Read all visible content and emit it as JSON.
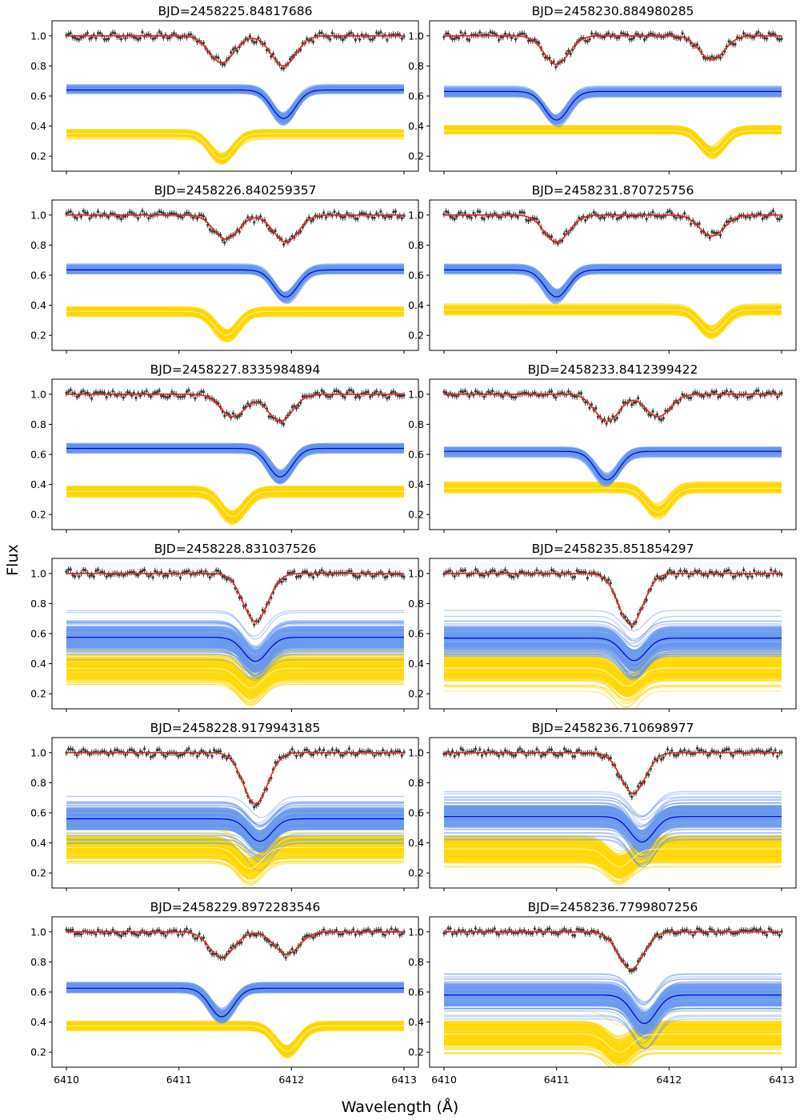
{
  "figure": {
    "ylabel": "Flux",
    "xlabel": "Wavelength (Å)"
  },
  "chart_data": [
    {
      "type": "line",
      "title": "BJD=2458225.84817686",
      "xlim": [
        6410,
        6413
      ],
      "ylim": [
        0.1,
        1.1
      ],
      "xticks": [
        6410,
        6411,
        6412,
        6413
      ],
      "yticks": [
        0.2,
        0.4,
        0.6,
        0.8,
        1.0
      ],
      "composite": {
        "dips": [
          {
            "center": 6411.38,
            "depth": 0.18
          },
          {
            "center": 6411.93,
            "depth": 0.2
          }
        ]
      },
      "primary": {
        "continuum": 0.64,
        "center": 6411.93,
        "depth": 0.19,
        "spread": "narrow"
      },
      "secondary": {
        "continuum": 0.35,
        "center": 6411.38,
        "depth": 0.17,
        "spread": "narrow"
      },
      "series": [
        "observed spectrum",
        "composite model",
        "primary component samples",
        "secondary component samples"
      ]
    },
    {
      "type": "line",
      "title": "BJD=2458230.884980285",
      "xlim": [
        6410,
        6413
      ],
      "ylim": [
        0.1,
        1.1
      ],
      "xticks": [
        6410,
        6411,
        6412,
        6413
      ],
      "yticks": [
        0.2,
        0.4,
        0.6,
        0.8,
        1.0
      ],
      "composite": {
        "dips": [
          {
            "center": 6411.0,
            "depth": 0.19
          },
          {
            "center": 6412.38,
            "depth": 0.16
          }
        ]
      },
      "primary": {
        "continuum": 0.63,
        "center": 6411.0,
        "depth": 0.19,
        "spread": "narrow"
      },
      "secondary": {
        "continuum": 0.37,
        "center": 6412.38,
        "depth": 0.15,
        "spread": "narrow"
      },
      "series": [
        "observed spectrum",
        "composite model",
        "primary component samples",
        "secondary component samples"
      ]
    },
    {
      "type": "line",
      "title": "BJD=2458226.840259357",
      "xlim": [
        6410,
        6413
      ],
      "ylim": [
        0.1,
        1.1
      ],
      "xticks": [
        6410,
        6411,
        6412,
        6413
      ],
      "yticks": [
        0.2,
        0.4,
        0.6,
        0.8,
        1.0
      ],
      "composite": {
        "dips": [
          {
            "center": 6411.42,
            "depth": 0.16
          },
          {
            "center": 6411.95,
            "depth": 0.18
          }
        ]
      },
      "primary": {
        "continuum": 0.635,
        "center": 6411.95,
        "depth": 0.18,
        "spread": "narrow"
      },
      "secondary": {
        "continuum": 0.36,
        "center": 6411.42,
        "depth": 0.16,
        "spread": "narrow"
      },
      "series": [
        "observed spectrum",
        "composite model",
        "primary component samples",
        "secondary component samples"
      ]
    },
    {
      "type": "line",
      "title": "BJD=2458231.870725756",
      "xlim": [
        6410,
        6413
      ],
      "ylim": [
        0.1,
        1.1
      ],
      "xticks": [
        6410,
        6411,
        6412,
        6413
      ],
      "yticks": [
        0.2,
        0.4,
        0.6,
        0.8,
        1.0
      ],
      "composite": {
        "dips": [
          {
            "center": 6411.0,
            "depth": 0.18
          },
          {
            "center": 6412.38,
            "depth": 0.14
          }
        ]
      },
      "primary": {
        "continuum": 0.635,
        "center": 6411.0,
        "depth": 0.18,
        "spread": "narrow"
      },
      "secondary": {
        "continuum": 0.37,
        "center": 6412.38,
        "depth": 0.15,
        "spread": "narrow"
      },
      "series": [
        "observed spectrum",
        "composite model",
        "primary component samples",
        "secondary component samples"
      ]
    },
    {
      "type": "line",
      "title": "BJD=2458227.8335984894",
      "xlim": [
        6410,
        6413
      ],
      "ylim": [
        0.1,
        1.1
      ],
      "xticks": [
        6410,
        6411,
        6412,
        6413
      ],
      "yticks": [
        0.2,
        0.4,
        0.6,
        0.8,
        1.0
      ],
      "composite": {
        "dips": [
          {
            "center": 6411.48,
            "depth": 0.15
          },
          {
            "center": 6411.9,
            "depth": 0.18
          }
        ]
      },
      "primary": {
        "continuum": 0.64,
        "center": 6411.9,
        "depth": 0.19,
        "spread": "narrow"
      },
      "secondary": {
        "continuum": 0.355,
        "center": 6411.48,
        "depth": 0.17,
        "spread": "narrow"
      },
      "series": [
        "observed spectrum",
        "composite model",
        "primary component samples",
        "secondary component samples"
      ]
    },
    {
      "type": "line",
      "title": "BJD=2458233.8412399422",
      "xlim": [
        6410,
        6413
      ],
      "ylim": [
        0.1,
        1.1
      ],
      "xticks": [
        6410,
        6411,
        6412,
        6413
      ],
      "yticks": [
        0.2,
        0.4,
        0.6,
        0.8,
        1.0
      ],
      "composite": {
        "dips": [
          {
            "center": 6411.45,
            "depth": 0.18
          },
          {
            "center": 6411.9,
            "depth": 0.15
          }
        ]
      },
      "primary": {
        "continuum": 0.62,
        "center": 6411.45,
        "depth": 0.19,
        "spread": "narrow"
      },
      "secondary": {
        "continuum": 0.375,
        "center": 6411.9,
        "depth": 0.16,
        "spread": "narrow"
      },
      "series": [
        "observed spectrum",
        "composite model",
        "primary component samples",
        "secondary component samples"
      ]
    },
    {
      "type": "line",
      "title": "BJD=2458228.831037526",
      "xlim": [
        6410,
        6413
      ],
      "ylim": [
        0.1,
        1.1
      ],
      "xticks": [
        6410,
        6411,
        6412,
        6413
      ],
      "yticks": [
        0.2,
        0.4,
        0.6,
        0.8,
        1.0
      ],
      "composite": {
        "dips": [
          {
            "center": 6411.68,
            "depth": 0.32
          }
        ]
      },
      "primary": {
        "continuum": 0.575,
        "center": 6411.68,
        "depth": 0.16,
        "spread": "wide"
      },
      "secondary": {
        "continuum": 0.37,
        "center": 6411.64,
        "depth": 0.13,
        "spread": "wide"
      },
      "series": [
        "observed spectrum",
        "composite model",
        "primary component samples",
        "secondary component samples"
      ]
    },
    {
      "type": "line",
      "title": "BJD=2458235.851854297",
      "xlim": [
        6410,
        6413
      ],
      "ylim": [
        0.1,
        1.1
      ],
      "xticks": [
        6410,
        6411,
        6412,
        6413
      ],
      "yticks": [
        0.2,
        0.4,
        0.6,
        0.8,
        1.0
      ],
      "composite": {
        "dips": [
          {
            "center": 6411.66,
            "depth": 0.34
          }
        ]
      },
      "primary": {
        "continuum": 0.57,
        "center": 6411.69,
        "depth": 0.15,
        "spread": "wide"
      },
      "secondary": {
        "continuum": 0.37,
        "center": 6411.63,
        "depth": 0.12,
        "spread": "wide"
      },
      "series": [
        "observed spectrum",
        "composite model",
        "primary component samples",
        "secondary component samples"
      ]
    },
    {
      "type": "line",
      "title": "BJD=2458228.9179943185",
      "xlim": [
        6410,
        6413
      ],
      "ylim": [
        0.1,
        1.1
      ],
      "xticks": [
        6410,
        6411,
        6412,
        6413
      ],
      "yticks": [
        0.2,
        0.4,
        0.6,
        0.8,
        1.0
      ],
      "composite": {
        "dips": [
          {
            "center": 6411.68,
            "depth": 0.34
          }
        ]
      },
      "primary": {
        "continuum": 0.56,
        "center": 6411.72,
        "depth": 0.15,
        "spread": "wide"
      },
      "secondary": {
        "continuum": 0.37,
        "center": 6411.63,
        "depth": 0.14,
        "spread": "wide"
      },
      "series": [
        "observed spectrum",
        "composite model",
        "primary component samples",
        "secondary component samples"
      ]
    },
    {
      "type": "line",
      "title": "BJD=2458236.710698977",
      "xlim": [
        6410,
        6413
      ],
      "ylim": [
        0.1,
        1.1
      ],
      "xticks": [
        6410,
        6411,
        6412,
        6413
      ],
      "yticks": [
        0.2,
        0.4,
        0.6,
        0.8,
        1.0
      ],
      "composite": {
        "dips": [
          {
            "center": 6411.68,
            "depth": 0.27
          }
        ]
      },
      "primary": {
        "continuum": 0.575,
        "center": 6411.76,
        "depth": 0.17,
        "spread": "wide"
      },
      "secondary": {
        "continuum": 0.36,
        "center": 6411.56,
        "depth": 0.12,
        "spread": "wide"
      },
      "series": [
        "observed spectrum",
        "composite model",
        "primary component samples",
        "secondary component samples"
      ]
    },
    {
      "type": "line",
      "title": "BJD=2458229.8972283546",
      "xlim": [
        6410,
        6413
      ],
      "ylim": [
        0.1,
        1.1
      ],
      "xticks": [
        6410,
        6411,
        6412,
        6413
      ],
      "yticks": [
        0.2,
        0.4,
        0.6,
        0.8,
        1.0
      ],
      "composite": {
        "dips": [
          {
            "center": 6411.38,
            "depth": 0.17
          },
          {
            "center": 6411.96,
            "depth": 0.15
          }
        ]
      },
      "primary": {
        "continuum": 0.625,
        "center": 6411.38,
        "depth": 0.19,
        "spread": "narrow"
      },
      "secondary": {
        "continuum": 0.375,
        "center": 6411.96,
        "depth": 0.17,
        "spread": "narrow"
      },
      "series": [
        "observed spectrum",
        "composite model",
        "primary component samples",
        "secondary component samples"
      ]
    },
    {
      "type": "line",
      "title": "BJD=2458236.7799807256",
      "xlim": [
        6410,
        6413
      ],
      "ylim": [
        0.1,
        1.1
      ],
      "xticks": [
        6410,
        6411,
        6412,
        6413
      ],
      "yticks": [
        0.2,
        0.4,
        0.6,
        0.8,
        1.0
      ],
      "composite": {
        "dips": [
          {
            "center": 6411.66,
            "depth": 0.25
          }
        ]
      },
      "primary": {
        "continuum": 0.58,
        "center": 6411.78,
        "depth": 0.19,
        "spread": "wide"
      },
      "secondary": {
        "continuum": 0.32,
        "center": 6411.56,
        "depth": 0.12,
        "spread": "wide"
      },
      "series": [
        "observed spectrum",
        "composite model",
        "primary component samples",
        "secondary component samples"
      ]
    }
  ],
  "colors": {
    "observed": "#3a3a3a",
    "composite": "#e0271e",
    "primary_band": "#6495ed",
    "primary_line": "#0000cd",
    "secondary_band": "#ffd700",
    "secondary_line": "#fff6a0",
    "axes": "#000000"
  }
}
